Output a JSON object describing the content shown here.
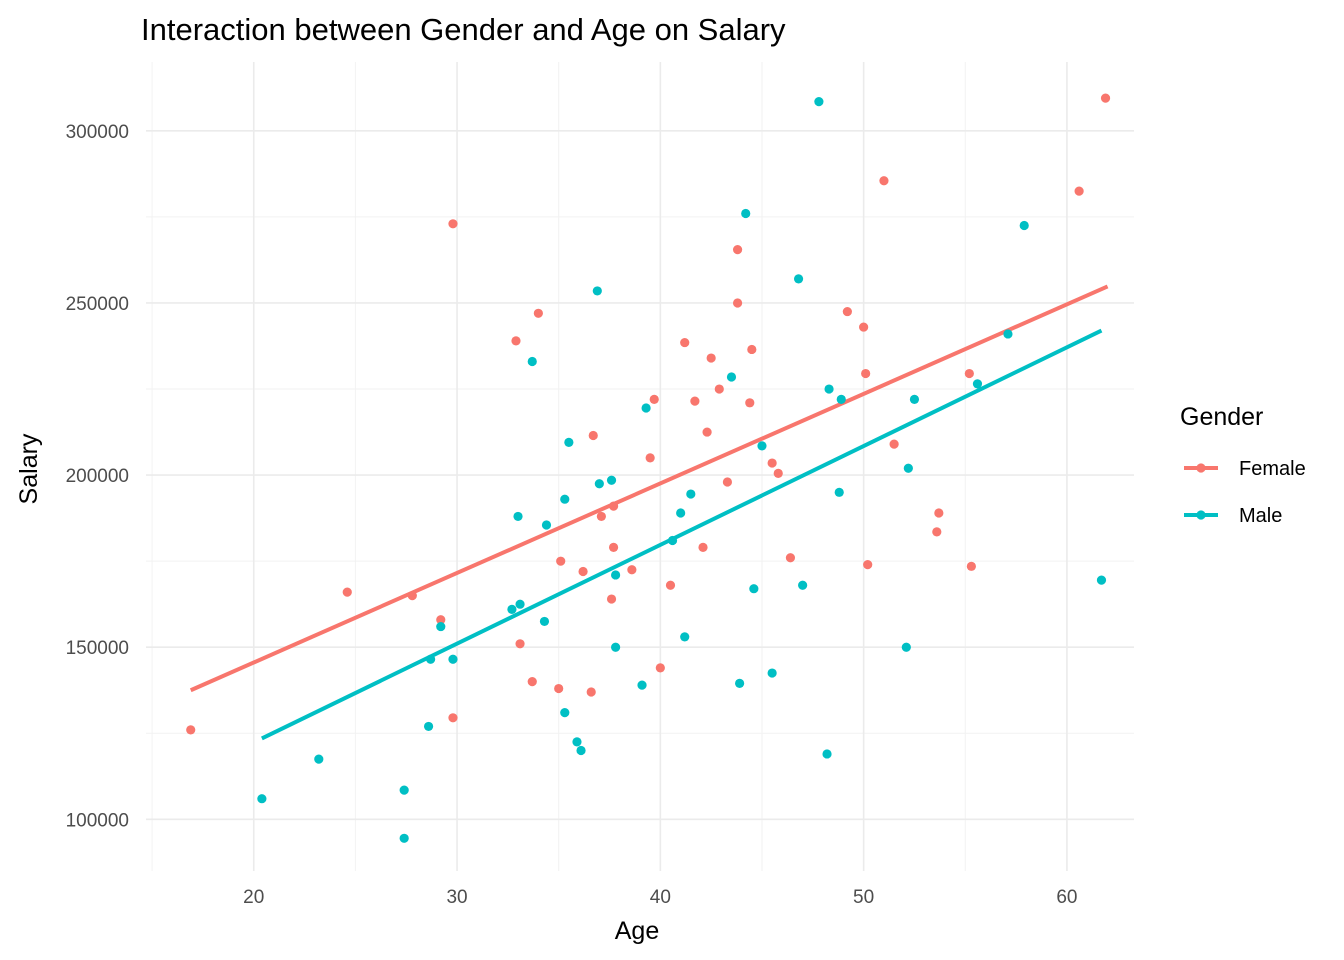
{
  "chart_data": {
    "type": "scatter",
    "title": "Interaction between Gender and Age on Salary",
    "xlabel": "Age",
    "ylabel": "Salary",
    "xlim": [
      14.7,
      63.3
    ],
    "ylim": [
      85000,
      320000
    ],
    "x_ticks": [
      20,
      30,
      40,
      50,
      60
    ],
    "y_ticks": [
      100000,
      150000,
      200000,
      250000,
      300000
    ],
    "x_tick_labels": [
      "20",
      "30",
      "40",
      "50",
      "60"
    ],
    "y_tick_labels": [
      "100000",
      "150000",
      "200000",
      "250000",
      "300000"
    ],
    "grid": true,
    "legend": {
      "title": "Gender",
      "position": "right",
      "entries": [
        "Female",
        "Male"
      ]
    },
    "series": [
      {
        "name": "Female",
        "color": "#F8766D",
        "fit_line": [
          [
            16.9,
            137500
          ],
          [
            62.0,
            254800
          ]
        ],
        "points": [
          [
            16.9,
            126000
          ],
          [
            24.6,
            166000
          ],
          [
            27.8,
            165000
          ],
          [
            29.2,
            158000
          ],
          [
            29.8,
            273000
          ],
          [
            29.8,
            129500
          ],
          [
            32.9,
            239000
          ],
          [
            33.1,
            151000
          ],
          [
            33.7,
            140000
          ],
          [
            34.0,
            247000
          ],
          [
            35.0,
            138000
          ],
          [
            35.1,
            175000
          ],
          [
            36.2,
            172000
          ],
          [
            36.6,
            137000
          ],
          [
            36.7,
            211500
          ],
          [
            37.1,
            188000
          ],
          [
            37.6,
            164000
          ],
          [
            37.7,
            191000
          ],
          [
            37.7,
            179000
          ],
          [
            38.6,
            172500
          ],
          [
            39.5,
            205000
          ],
          [
            39.7,
            222000
          ],
          [
            40.0,
            144000
          ],
          [
            40.5,
            168000
          ],
          [
            41.2,
            238500
          ],
          [
            41.7,
            221500
          ],
          [
            42.1,
            179000
          ],
          [
            42.3,
            212500
          ],
          [
            42.5,
            234000
          ],
          [
            42.9,
            225000
          ],
          [
            43.3,
            198000
          ],
          [
            43.8,
            250000
          ],
          [
            43.8,
            265500
          ],
          [
            44.4,
            221000
          ],
          [
            44.5,
            236500
          ],
          [
            45.5,
            203500
          ],
          [
            45.8,
            200500
          ],
          [
            46.4,
            176000
          ],
          [
            49.2,
            247500
          ],
          [
            50.0,
            243000
          ],
          [
            50.1,
            229500
          ],
          [
            50.2,
            174000
          ],
          [
            51.0,
            285500
          ],
          [
            51.5,
            209000
          ],
          [
            53.6,
            183500
          ],
          [
            53.7,
            189000
          ],
          [
            55.2,
            229500
          ],
          [
            55.3,
            173500
          ],
          [
            60.6,
            282500
          ],
          [
            61.9,
            309500
          ]
        ]
      },
      {
        "name": "Male",
        "color": "#00BFC4",
        "fit_line": [
          [
            20.4,
            123500
          ],
          [
            61.7,
            242000
          ]
        ],
        "points": [
          [
            20.4,
            106000
          ],
          [
            23.2,
            117500
          ],
          [
            27.4,
            108500
          ],
          [
            27.4,
            94500
          ],
          [
            28.6,
            127000
          ],
          [
            28.7,
            146500
          ],
          [
            29.2,
            156000
          ],
          [
            29.8,
            146500
          ],
          [
            32.7,
            161000
          ],
          [
            33.0,
            188000
          ],
          [
            33.1,
            162500
          ],
          [
            33.7,
            233000
          ],
          [
            34.3,
            157500
          ],
          [
            34.4,
            185500
          ],
          [
            35.3,
            193000
          ],
          [
            35.3,
            131000
          ],
          [
            35.5,
            209500
          ],
          [
            35.9,
            122500
          ],
          [
            36.1,
            120000
          ],
          [
            36.9,
            253500
          ],
          [
            37.0,
            197500
          ],
          [
            37.6,
            198500
          ],
          [
            37.8,
            150000
          ],
          [
            37.8,
            171000
          ],
          [
            39.1,
            139000
          ],
          [
            39.3,
            219500
          ],
          [
            40.6,
            181000
          ],
          [
            41.0,
            189000
          ],
          [
            41.2,
            153000
          ],
          [
            41.5,
            194500
          ],
          [
            43.5,
            228500
          ],
          [
            43.9,
            139500
          ],
          [
            44.2,
            276000
          ],
          [
            44.6,
            167000
          ],
          [
            45.0,
            208500
          ],
          [
            45.5,
            142500
          ],
          [
            46.8,
            257000
          ],
          [
            47.0,
            168000
          ],
          [
            47.8,
            308500
          ],
          [
            48.2,
            119000
          ],
          [
            48.3,
            225000
          ],
          [
            48.8,
            195000
          ],
          [
            48.9,
            222000
          ],
          [
            52.1,
            150000
          ],
          [
            52.2,
            202000
          ],
          [
            52.5,
            222000
          ],
          [
            55.6,
            226500
          ],
          [
            57.1,
            241000
          ],
          [
            57.9,
            272500
          ],
          [
            61.7,
            169500
          ]
        ]
      }
    ]
  }
}
